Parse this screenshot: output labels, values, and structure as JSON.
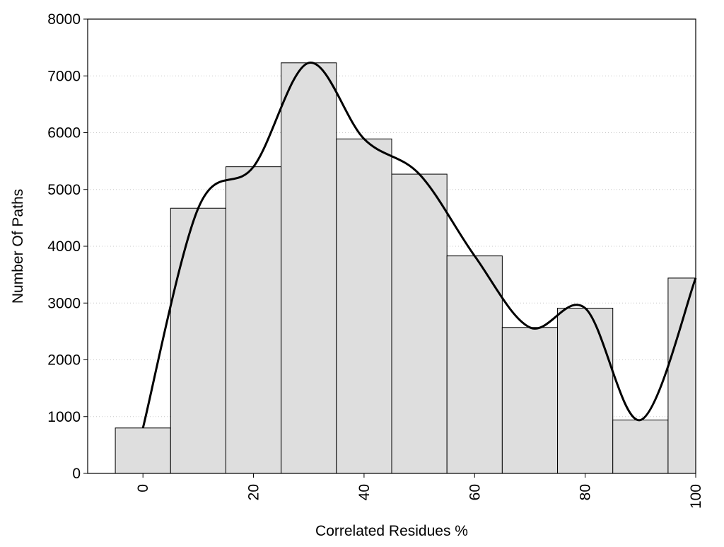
{
  "chart_data": {
    "type": "bar",
    "title": "",
    "xlabel": "Correlated Residues %",
    "ylabel": "Number Of Paths",
    "x": [
      0,
      10,
      20,
      30,
      40,
      50,
      60,
      70,
      80,
      90,
      100
    ],
    "values": [
      800,
      4670,
      5400,
      7230,
      5890,
      5270,
      3830,
      2570,
      2910,
      940,
      3440
    ],
    "bin_width": 10,
    "xlim": [
      -10,
      100
    ],
    "ylim": [
      0,
      8000
    ],
    "x_ticks": [
      0,
      20,
      40,
      60,
      80,
      100
    ],
    "y_ticks": [
      0,
      1000,
      2000,
      3000,
      4000,
      5000,
      6000,
      7000,
      8000
    ],
    "grid": "horizontal dotted",
    "bar_color": "#dedede",
    "line_color": "#000000",
    "smooth_curve": {
      "x": [
        0,
        10,
        20,
        30,
        40,
        50,
        60,
        70,
        80,
        90,
        100
      ],
      "values": [
        800,
        4670,
        5400,
        7230,
        5890,
        5270,
        3830,
        2570,
        2910,
        940,
        3440
      ]
    }
  }
}
